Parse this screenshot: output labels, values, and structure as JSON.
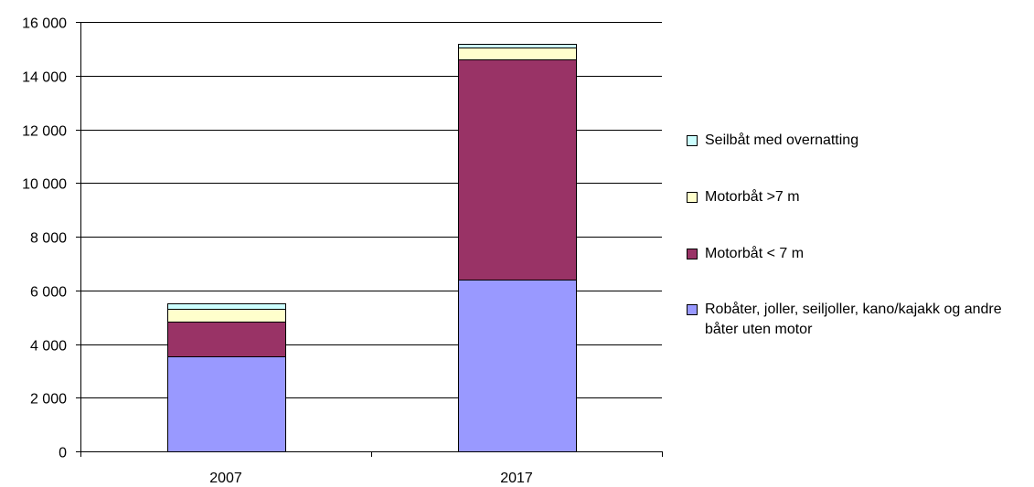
{
  "chart_data": {
    "type": "bar",
    "stacked": true,
    "categories": [
      "2007",
      "2017"
    ],
    "series": [
      {
        "name": "Robåter, joller, seiljoller, kano/kajakk og andre båter uten motor",
        "color": "#9999ff",
        "values": [
          3550,
          6400
        ]
      },
      {
        "name": "Motorbåt < 7 m",
        "color": "#993366",
        "values": [
          1300,
          8200
        ]
      },
      {
        "name": "Motorbåt >7 m",
        "color": "#ffffcc",
        "values": [
          450,
          450
        ]
      },
      {
        "name": "Seilbåt med overnatting",
        "color": "#ccffff",
        "values": [
          200,
          150
        ]
      }
    ],
    "ylim": [
      0,
      16000
    ],
    "yticks": [
      0,
      2000,
      4000,
      6000,
      8000,
      10000,
      12000,
      14000,
      16000
    ],
    "ytick_labels": [
      "0",
      "2 000",
      "4 000",
      "6 000",
      "8 000",
      "10 000",
      "12 000",
      "14 000",
      "16 000"
    ],
    "grid": true,
    "legend_position": "right",
    "legend_order": [
      "Seilbåt med overnatting",
      "Motorbåt >7 m",
      "Motorbåt < 7 m",
      "Robåter, joller, seiljoller, kano/kajakk og andre båter uten motor"
    ]
  }
}
